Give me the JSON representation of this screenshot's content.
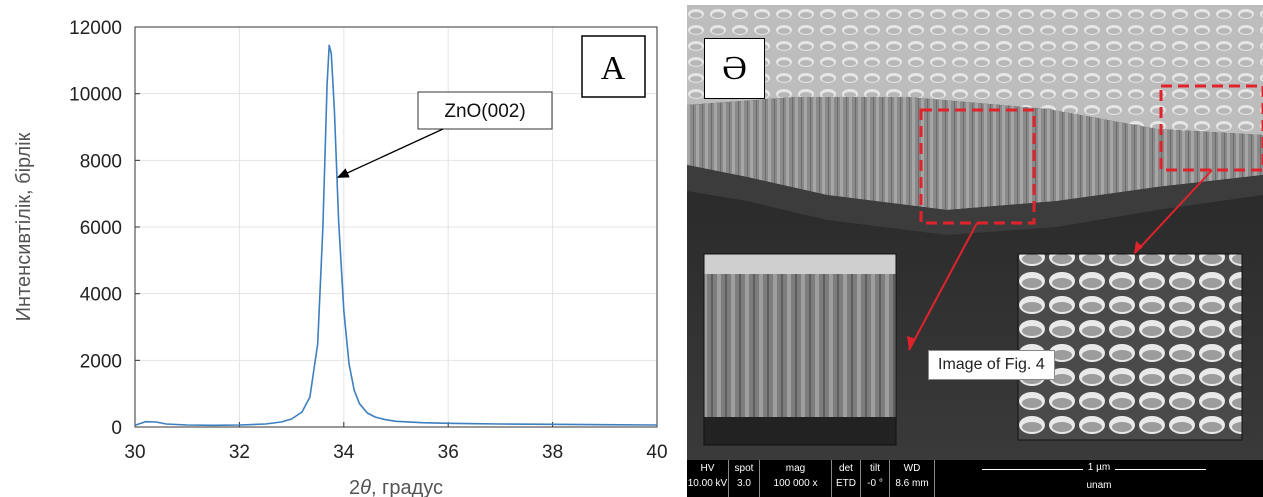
{
  "chart_data": {
    "type": "line",
    "x": [
      30.0,
      30.2,
      30.4,
      30.6,
      31.0,
      31.5,
      32.0,
      32.5,
      32.8,
      33.0,
      33.2,
      33.35,
      33.5,
      33.6,
      33.68,
      33.72,
      33.76,
      33.82,
      33.9,
      34.0,
      34.1,
      34.2,
      34.3,
      34.45,
      34.6,
      34.8,
      35.0,
      35.5,
      36.0,
      36.5,
      37.0,
      38.0,
      39.0,
      40.0
    ],
    "series": [
      {
        "values": [
          50,
          160,
          150,
          90,
          60,
          50,
          60,
          90,
          150,
          240,
          450,
          900,
          2500,
          6000,
          10300,
          11450,
          11200,
          9500,
          6200,
          3500,
          1900,
          1100,
          700,
          420,
          300,
          220,
          170,
          130,
          110,
          100,
          90,
          80,
          70,
          60
        ]
      }
    ],
    "xlabel": "2θ, градус",
    "ylabel": "Интенсивтілік, бірлік",
    "xlim": [
      30,
      40
    ],
    "ylim": [
      0,
      12000
    ],
    "xticks": [
      30,
      32,
      34,
      36,
      38,
      40
    ],
    "yticks": [
      0,
      2000,
      4000,
      6000,
      8000,
      10000,
      12000
    ],
    "grid": true,
    "color": "#3d7fbf",
    "annotation": {
      "text": "ZnO(002)",
      "arrow_to": [
        33.9,
        7500
      ]
    },
    "panel_label": "A"
  },
  "sem": {
    "panel_label": "Ә",
    "caption": "Image of Fig. 4",
    "box_color": "#e0232b",
    "databar": {
      "headers": [
        "HV",
        "spot",
        "mag",
        "det",
        "tilt",
        "WD"
      ],
      "values": [
        "10.00 kV",
        "3.0",
        "100 000 x",
        "ETD",
        "-0 °",
        "8.6 mm"
      ],
      "scale_label": "1 µm",
      "institution": "unam"
    }
  }
}
